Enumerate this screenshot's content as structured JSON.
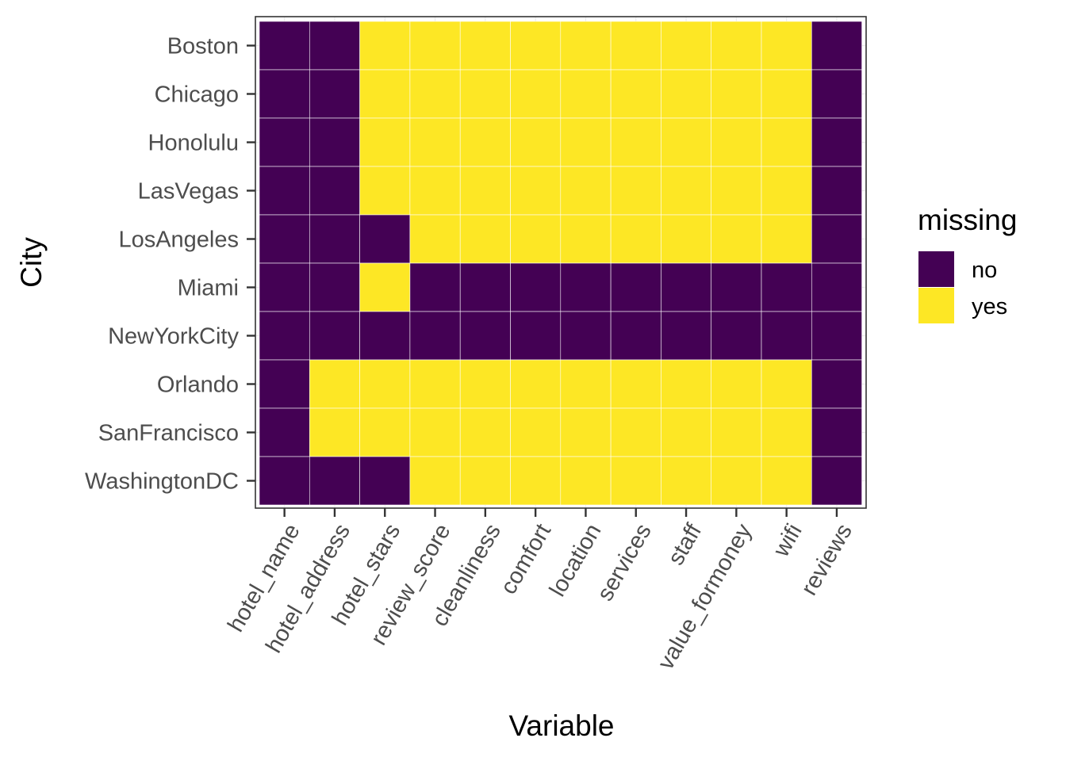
{
  "chart_data": {
    "type": "heatmap",
    "title": "",
    "xlabel": "Variable",
    "ylabel": "City",
    "x": [
      "hotel_name",
      "hotel_address",
      "hotel_stars",
      "review_score",
      "cleanliness",
      "comfort",
      "location",
      "services",
      "staff",
      "value_formoney",
      "wifi",
      "reviews"
    ],
    "y": [
      "Boston",
      "Chicago",
      "Honolulu",
      "LasVegas",
      "LosAngeles",
      "Miami",
      "NewYorkCity",
      "Orlando",
      "SanFrancisco",
      "WashingtonDC"
    ],
    "values": [
      [
        "no",
        "no",
        "yes",
        "yes",
        "yes",
        "yes",
        "yes",
        "yes",
        "yes",
        "yes",
        "yes",
        "no"
      ],
      [
        "no",
        "no",
        "yes",
        "yes",
        "yes",
        "yes",
        "yes",
        "yes",
        "yes",
        "yes",
        "yes",
        "no"
      ],
      [
        "no",
        "no",
        "yes",
        "yes",
        "yes",
        "yes",
        "yes",
        "yes",
        "yes",
        "yes",
        "yes",
        "no"
      ],
      [
        "no",
        "no",
        "yes",
        "yes",
        "yes",
        "yes",
        "yes",
        "yes",
        "yes",
        "yes",
        "yes",
        "no"
      ],
      [
        "no",
        "no",
        "no",
        "yes",
        "yes",
        "yes",
        "yes",
        "yes",
        "yes",
        "yes",
        "yes",
        "no"
      ],
      [
        "no",
        "no",
        "yes",
        "no",
        "no",
        "no",
        "no",
        "no",
        "no",
        "no",
        "no",
        "no"
      ],
      [
        "no",
        "no",
        "no",
        "no",
        "no",
        "no",
        "no",
        "no",
        "no",
        "no",
        "no",
        "no"
      ],
      [
        "no",
        "yes",
        "yes",
        "yes",
        "yes",
        "yes",
        "yes",
        "yes",
        "yes",
        "yes",
        "yes",
        "no"
      ],
      [
        "no",
        "yes",
        "yes",
        "yes",
        "yes",
        "yes",
        "yes",
        "yes",
        "yes",
        "yes",
        "yes",
        "no"
      ],
      [
        "no",
        "no",
        "no",
        "yes",
        "yes",
        "yes",
        "yes",
        "yes",
        "yes",
        "yes",
        "yes",
        "no"
      ]
    ],
    "legend": {
      "title": "missing",
      "placement": "right",
      "items": [
        {
          "label": "no",
          "color": "#440154"
        },
        {
          "label": "yes",
          "color": "#FDE725"
        }
      ]
    },
    "grid": true,
    "x_tick_rotation_deg": 60
  },
  "colors": {
    "no": "#440154",
    "yes": "#FDE725",
    "panel_border": "#333333",
    "grid": "#ebebeb",
    "tick_text": "#4d4d4d"
  }
}
